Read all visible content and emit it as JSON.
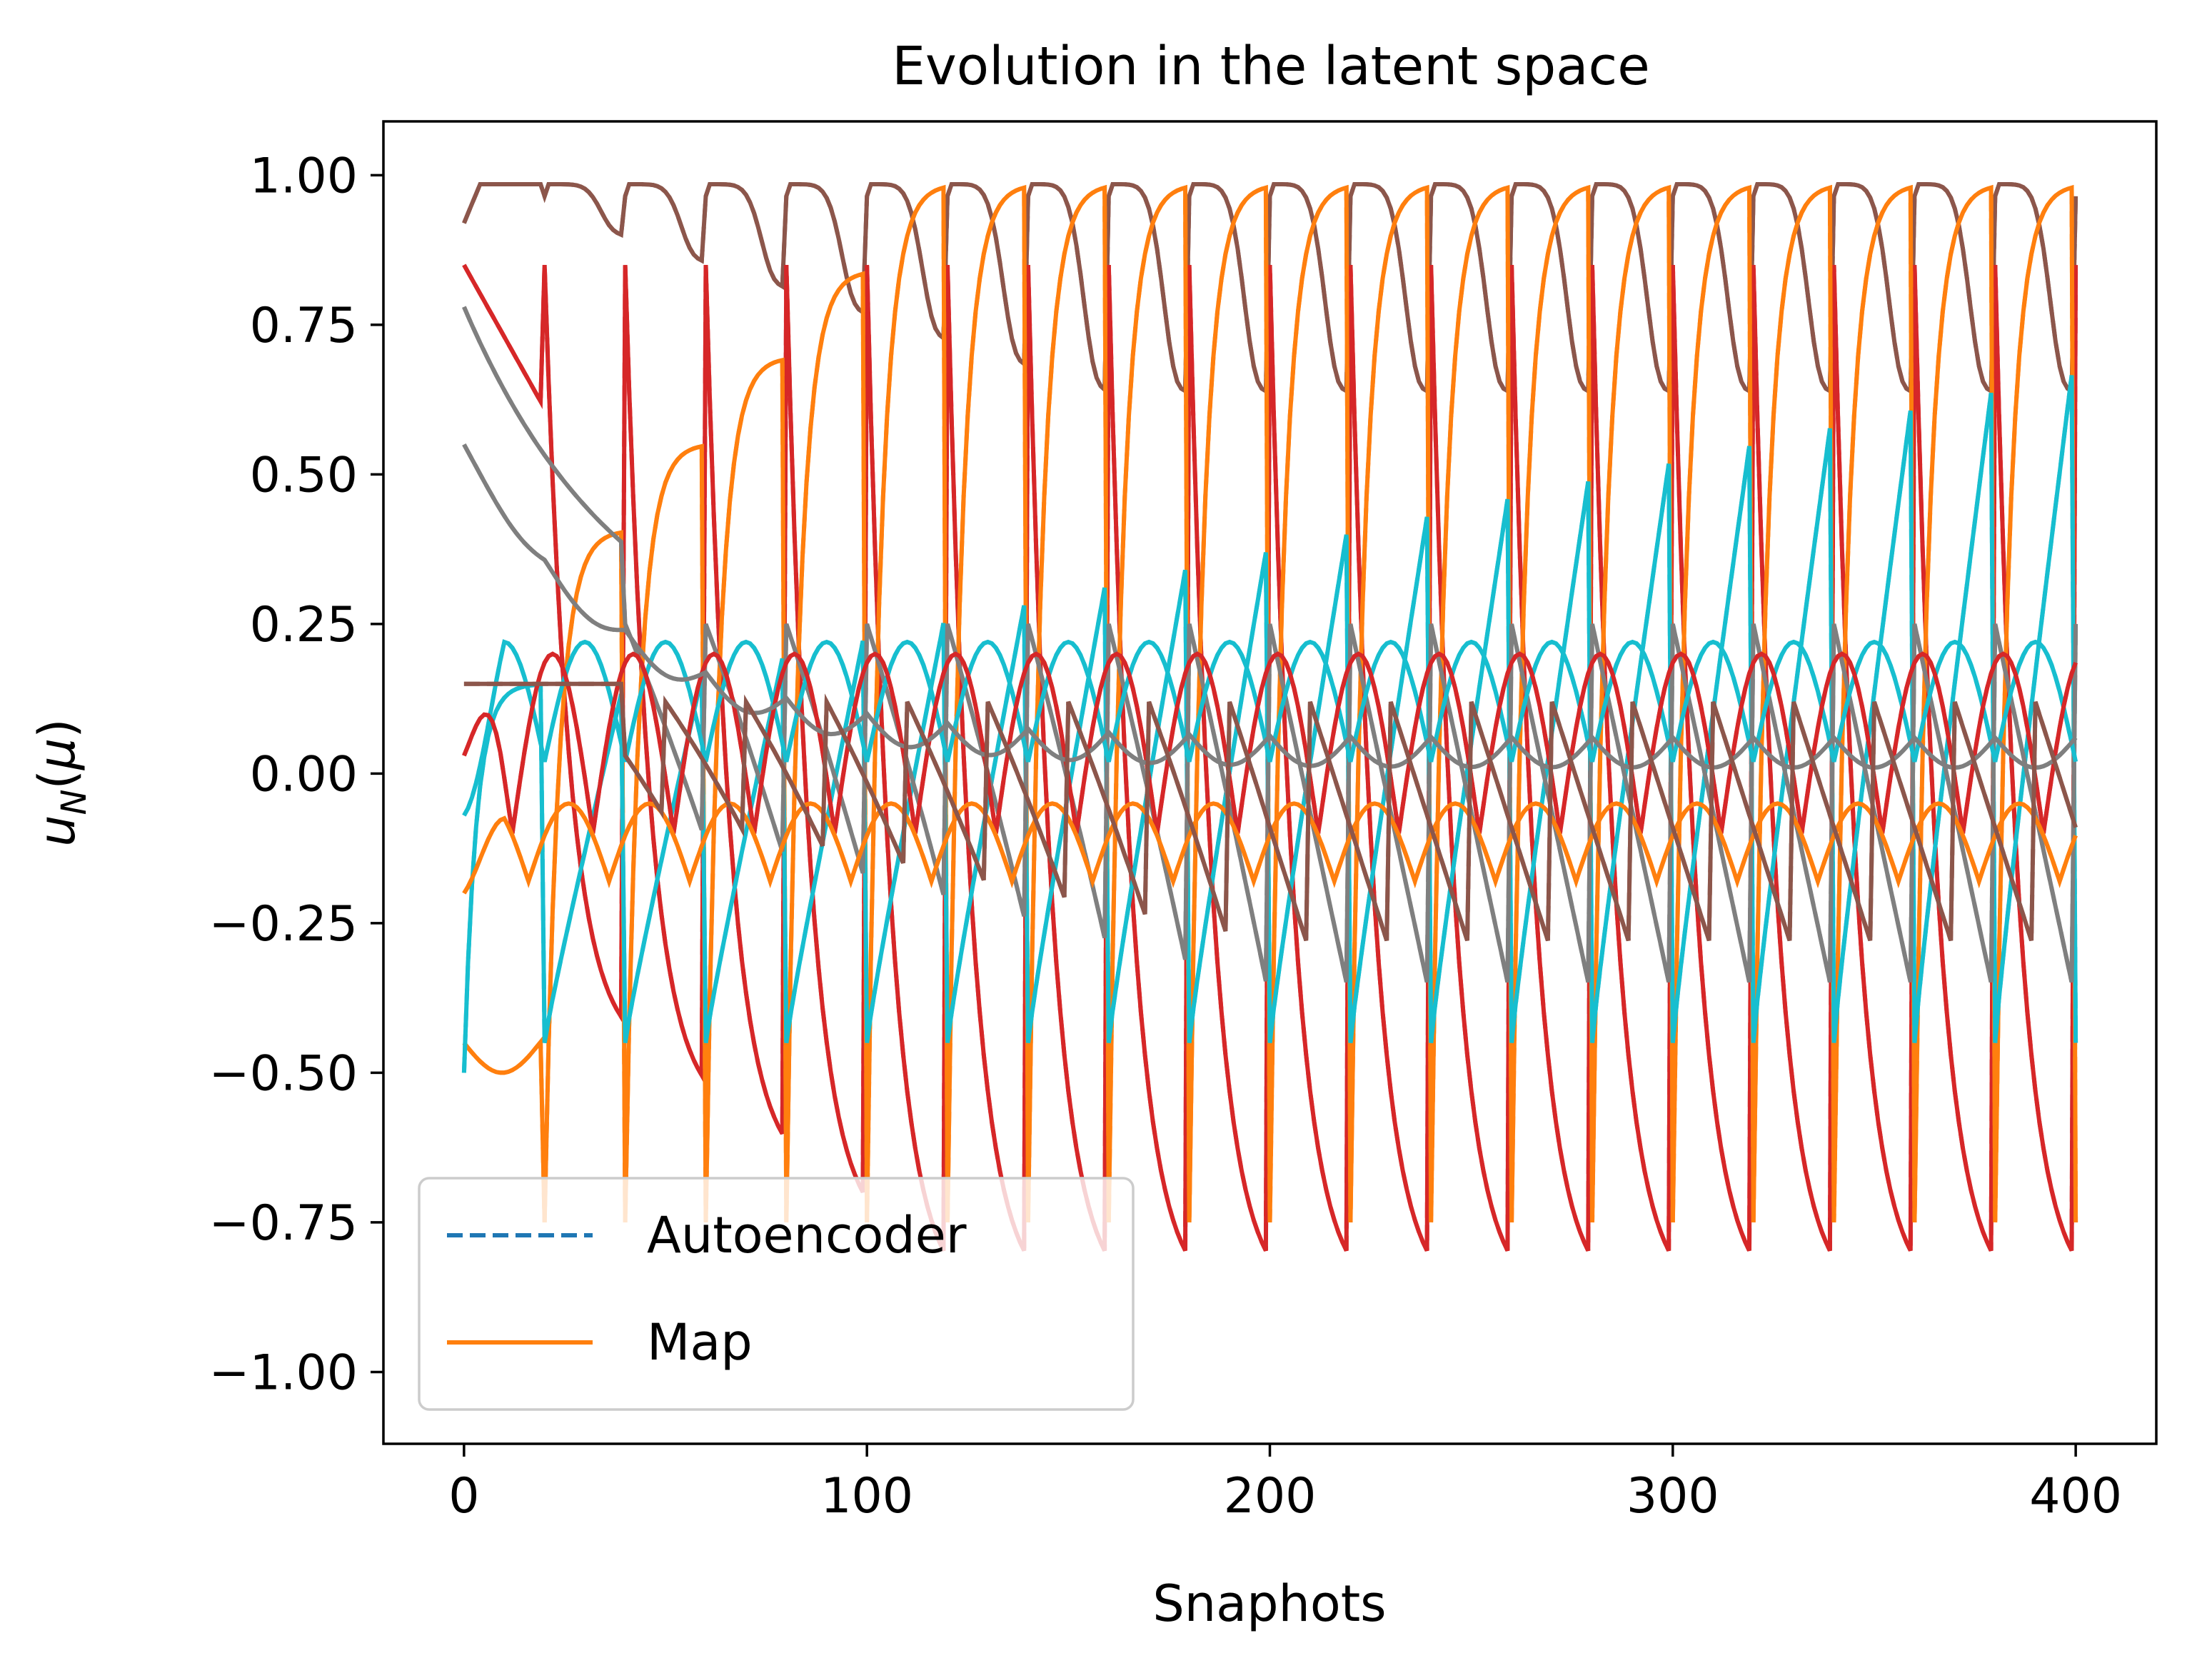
{
  "chart_data": {
    "type": "line",
    "title": "Evolution in the latent space",
    "xlabel": "Snaphots",
    "ylabel": "u_N(μ)",
    "xlim": [
      -20,
      420
    ],
    "ylim": [
      -1.12,
      1.09
    ],
    "x_ticks": [
      0,
      100,
      200,
      300,
      400
    ],
    "x_tick_labels": [
      "0",
      "100",
      "200",
      "300",
      "400"
    ],
    "y_ticks": [
      1.0,
      0.75,
      0.5,
      0.25,
      0.0,
      -0.25,
      -0.5,
      -0.75,
      -1.0
    ],
    "y_tick_labels": [
      "1.00",
      "0.75",
      "0.50",
      "0.25",
      "0.00",
      "−0.25",
      "−0.50",
      "−0.75",
      "−1.00"
    ],
    "grid": false,
    "legend": {
      "position": "lower-left",
      "entries": [
        {
          "label": "Autoencoder",
          "style": "dashed",
          "color": "#1f77b4"
        },
        {
          "label": "Map",
          "style": "solid",
          "color": "#ff7f0e"
        }
      ]
    },
    "colors": {
      "blue": "#1f77b4",
      "orange": "#ff7f0e",
      "green": "#2ca02c",
      "red": "#d62728",
      "brown": "#8c564b",
      "pink": "#e377c2",
      "gray": "#7f7f7f",
      "cyan": "#17becf"
    },
    "period": 20,
    "n_snapshots": 400,
    "series": [
      {
        "color": "brown",
        "start": 0.92,
        "peak": 0.985,
        "trough": 0.6,
        "kind": "plateau",
        "phase": 0,
        "dip_depth": 0.02,
        "dip_growth": 0.03
      },
      {
        "color": "red",
        "start": 0.85,
        "peak": 0.85,
        "trough": -0.88,
        "kind": "decay",
        "phase": 0
      },
      {
        "color": "orange",
        "start": -0.45,
        "peak": 0.985,
        "trough": -0.75,
        "kind": "rise",
        "phase": 0
      },
      {
        "color": "cyan",
        "start": -0.5,
        "peak": 0.72,
        "trough": -0.45,
        "kind": "rise_linear",
        "phase": 0
      },
      {
        "color": "gray",
        "start": 0.78,
        "peak": 0.25,
        "trough": -0.38,
        "kind": "decay_slow",
        "phase": 0
      },
      {
        "color": "cyan",
        "start": -0.07,
        "peak": 0.22,
        "trough": 0.02,
        "kind": "arch",
        "phase": 0
      },
      {
        "color": "red",
        "start": 0.03,
        "peak": 0.2,
        "trough": -0.1,
        "kind": "arch",
        "phase": 8
      },
      {
        "color": "orange",
        "start": -0.2,
        "peak": -0.05,
        "trough": -0.18,
        "kind": "arch",
        "phase": 4
      },
      {
        "color": "gray",
        "start": 0.55,
        "peak": 0.06,
        "trough": 0.02,
        "kind": "settle",
        "phase": 0
      },
      {
        "color": "brown",
        "start": 0.15,
        "peak": 0.12,
        "trough": -0.3,
        "kind": "decay_slow",
        "phase": 10
      }
    ]
  }
}
